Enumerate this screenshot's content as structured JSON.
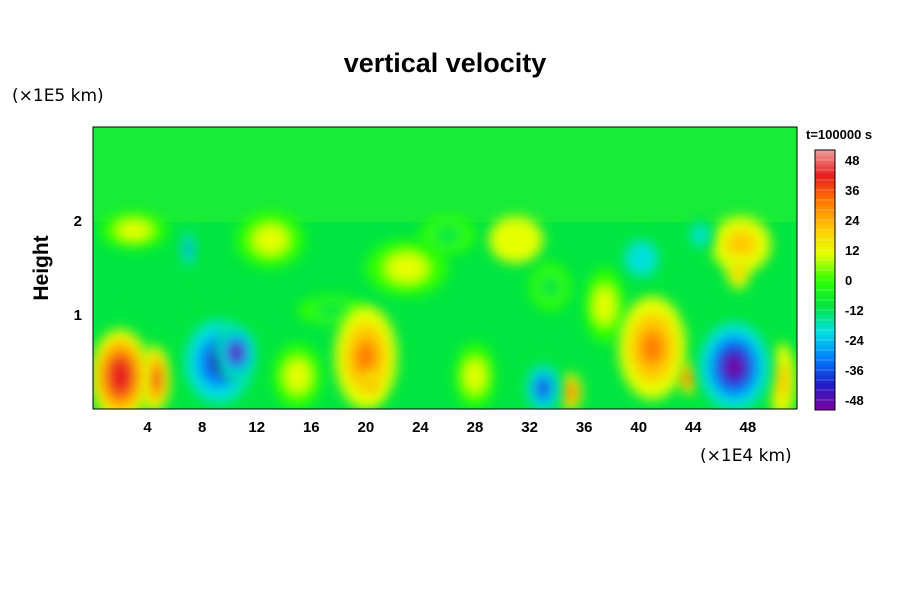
{
  "chart_data": {
    "type": "heatmap",
    "title": "vertical velocity",
    "ylabel": "Height",
    "x_unit": "(×1E4 km)",
    "y_unit": "(×1E5 km)",
    "time_label": "t=100000 s",
    "x_ticks": [
      4,
      8,
      12,
      16,
      20,
      24,
      28,
      32,
      36,
      40,
      44,
      48
    ],
    "y_ticks": [
      1,
      2
    ],
    "xlim": [
      0,
      51.6
    ],
    "ylim": [
      0,
      3.0
    ],
    "colorbar": {
      "ticks": [
        48,
        36,
        24,
        12,
        0,
        -12,
        -24,
        -36,
        -48
      ],
      "range": [
        -52,
        52
      ],
      "colors": [
        "#7d00a0",
        "#1e1ec8",
        "#0080ff",
        "#00e0e0",
        "#00e640",
        "#32ff00",
        "#e6ff00",
        "#ffc800",
        "#ff7a00",
        "#e61e1e",
        "#f0a0a0"
      ]
    },
    "features": [
      {
        "x": 2.0,
        "y": 0.35,
        "value": 46,
        "rx": 2.2,
        "ry": 0.5
      },
      {
        "x": 4.5,
        "y": 0.32,
        "value": 40,
        "rx": 1.2,
        "ry": 0.35
      },
      {
        "x": 9.2,
        "y": 0.5,
        "value": -42,
        "rx": 3.0,
        "ry": 0.55
      },
      {
        "x": 10.5,
        "y": 0.6,
        "value": -50,
        "rx": 1.5,
        "ry": 0.3
      },
      {
        "x": 7.0,
        "y": 1.7,
        "value": -30,
        "rx": 0.5,
        "ry": 0.25
      },
      {
        "x": 20.0,
        "y": 0.55,
        "value": 28,
        "rx": 2.3,
        "ry": 0.55
      },
      {
        "x": 20.4,
        "y": 0.25,
        "value": 34,
        "rx": 0.6,
        "ry": 0.15
      },
      {
        "x": 33.0,
        "y": 0.22,
        "value": -44,
        "rx": 1.4,
        "ry": 0.3
      },
      {
        "x": 35.0,
        "y": 0.18,
        "value": 36,
        "rx": 0.8,
        "ry": 0.2
      },
      {
        "x": 41.0,
        "y": 0.65,
        "value": 30,
        "rx": 2.5,
        "ry": 0.55
      },
      {
        "x": 43.7,
        "y": 0.33,
        "value": 38,
        "rx": 0.8,
        "ry": 0.17
      },
      {
        "x": 47.0,
        "y": 0.45,
        "value": -48,
        "rx": 3.0,
        "ry": 0.55
      },
      {
        "x": 50.5,
        "y": 0.3,
        "value": 18,
        "rx": 1.0,
        "ry": 0.4
      },
      {
        "x": 47.5,
        "y": 1.75,
        "value": 18,
        "rx": 2.2,
        "ry": 0.3
      },
      {
        "x": 47.3,
        "y": 1.45,
        "value": 24,
        "rx": 0.8,
        "ry": 0.18
      },
      {
        "x": 40.2,
        "y": 1.6,
        "value": -26,
        "rx": 1.6,
        "ry": 0.25
      },
      {
        "x": 44.5,
        "y": 1.85,
        "value": -20,
        "rx": 1.0,
        "ry": 0.2
      },
      {
        "x": 13.0,
        "y": 1.8,
        "value": 10,
        "rx": 2.5,
        "ry": 0.3
      },
      {
        "x": 23.0,
        "y": 1.5,
        "value": 8,
        "rx": 3.0,
        "ry": 0.3
      },
      {
        "x": 31.0,
        "y": 1.8,
        "value": 12,
        "rx": 2.0,
        "ry": 0.25
      },
      {
        "x": 3.0,
        "y": 1.9,
        "value": 8,
        "rx": 2.5,
        "ry": 0.2
      },
      {
        "x": 28.0,
        "y": 0.35,
        "value": 10,
        "rx": 1.5,
        "ry": 0.35
      },
      {
        "x": 15.0,
        "y": 0.35,
        "value": 6,
        "rx": 1.8,
        "ry": 0.35
      },
      {
        "x": 37.5,
        "y": 1.1,
        "value": 8,
        "rx": 1.5,
        "ry": 0.4
      },
      {
        "x": 26.0,
        "y": 1.85,
        "value": -8,
        "rx": 2.0,
        "ry": 0.2
      },
      {
        "x": 33.5,
        "y": 1.3,
        "value": -10,
        "rx": 1.5,
        "ry": 0.25
      },
      {
        "x": 5.0,
        "y": 1.3,
        "value": -12,
        "rx": 2.0,
        "ry": 0.2
      },
      {
        "x": 17.5,
        "y": 1.05,
        "value": -8,
        "rx": 2.5,
        "ry": 0.15
      }
    ]
  }
}
